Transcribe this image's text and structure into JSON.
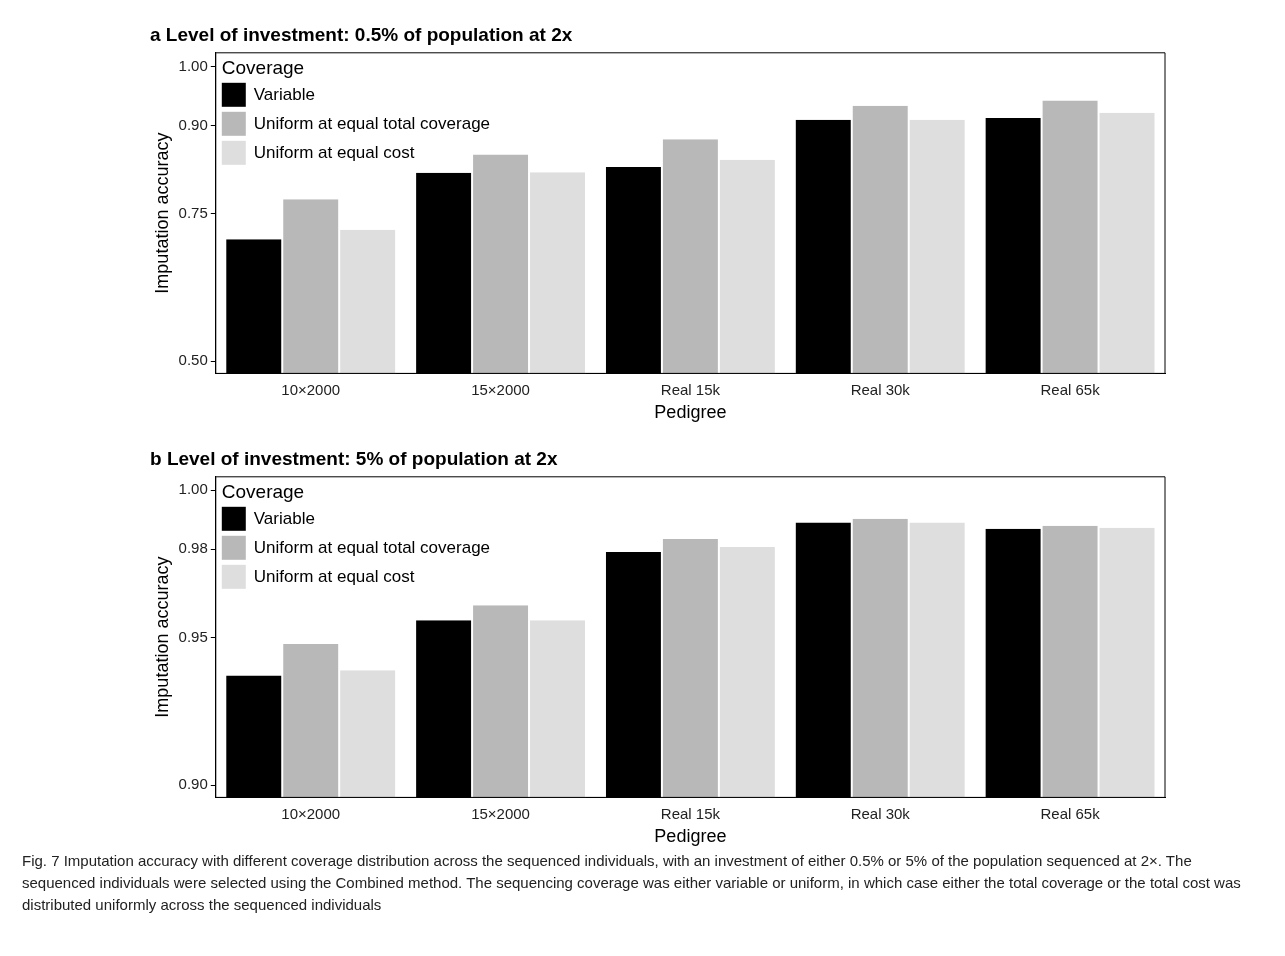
{
  "chart_data": [
    {
      "type": "bar",
      "title": "a Level of investment: 0.5% of population at 2x",
      "xlabel": "Pedigree",
      "ylabel": "Imputation accuracy",
      "legend_title": "Coverage",
      "legend": "top left",
      "grid": false,
      "categories": [
        "10×2000",
        "15×2000",
        "Real 15k",
        "Real 30k",
        "Real 65k"
      ],
      "series": [
        {
          "name": "Variable",
          "color": "#000000",
          "values": [
            0.707,
            0.82,
            0.83,
            0.91,
            0.913
          ]
        },
        {
          "name": "Uniform at equal total coverage",
          "color": "#b8b8b8",
          "values": [
            0.775,
            0.851,
            0.877,
            0.934,
            0.943
          ]
        },
        {
          "name": "Uniform at equal cost",
          "color": "#dedede",
          "values": [
            0.723,
            0.821,
            0.842,
            0.91,
            0.922
          ]
        }
      ],
      "ylim": [
        0.479,
        1.024
      ],
      "yticks": [
        {
          "value": 0.5,
          "label": "0.50"
        },
        0.75,
        {
          "value": 0.9,
          "label": "0.90"
        },
        {
          "value": 1,
          "label": "1.00"
        }
      ]
    },
    {
      "type": "bar",
      "title": "b Level of investment: 5% of population at 2x",
      "xlabel": "Pedigree",
      "ylabel": "Imputation accuracy",
      "legend_title": "Coverage",
      "legend": "top left",
      "grid": false,
      "categories": [
        "10×2000",
        "15×2000",
        "Real 15k",
        "Real 30k",
        "Real 65k"
      ],
      "series": [
        {
          "name": "Variable",
          "color": "#000000",
          "values": [
            0.9372,
            0.9559,
            0.979,
            0.989,
            0.9869
          ]
        },
        {
          "name": "Uniform at equal total coverage",
          "color": "#b8b8b8",
          "values": [
            0.9479,
            0.961,
            0.9834,
            0.9903,
            0.9879
          ]
        },
        {
          "name": "Uniform at equal cost",
          "color": "#dedede",
          "values": [
            0.939,
            0.9559,
            0.9807,
            0.989,
            0.9872
          ]
        }
      ],
      "ylim": [
        0.8959,
        1.0045
      ],
      "yticks": [
        {
          "value": 0.9,
          "label": "0.90"
        },
        0.95,
        0.98,
        {
          "value": 1,
          "label": "1.00"
        }
      ],
      "annotations": [
        "Fig. 7  Imputation accuracy with different coverage distribution across the sequenced individuals, with an investment of either 0.5% or 5% of the population sequenced at 2×. The sequenced individuals were selected using the Combined method. The sequencing coverage was either variable or uniform, in which case either the total coverage or the total cost was distributed uniformly across the sequenced individuals"
      ]
    }
  ]
}
